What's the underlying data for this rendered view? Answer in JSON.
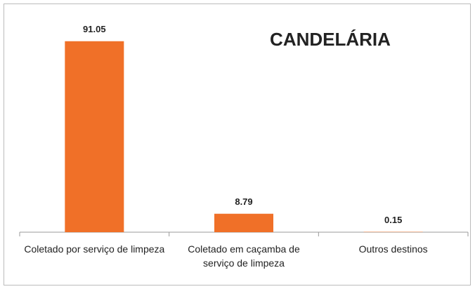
{
  "chart_data": {
    "type": "bar",
    "title": "CANDELÁRIA",
    "categories": [
      "Coletado por serviço de limpeza",
      "Coletado em caçamba de serviço de limpeza",
      "Outros destinos"
    ],
    "values": [
      91.05,
      8.79,
      0.15
    ],
    "color": "#f07028",
    "ylim": [
      0,
      100
    ],
    "grid": false
  }
}
